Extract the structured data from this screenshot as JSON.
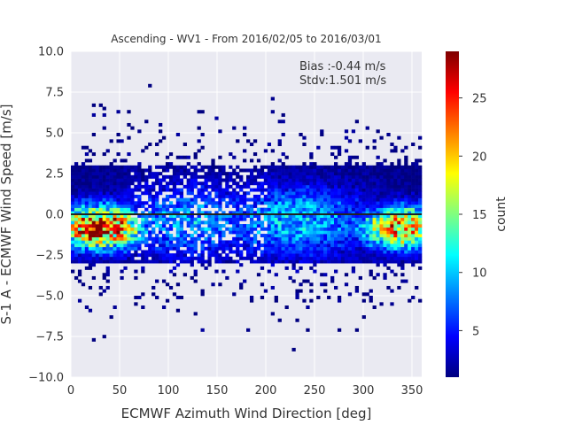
{
  "chart_data": {
    "type": "heatmap",
    "title": "Ascending - WV1 - From 2016/02/05 to 2016/03/01",
    "xlabel": "ECMWF Azimuth Wind Direction [deg]",
    "ylabel": "S-1 A - ECMWF Wind Speed [m/s]",
    "xlim": [
      0,
      360
    ],
    "ylim": [
      -10,
      10
    ],
    "x_ticks": [
      "0",
      "50",
      "100",
      "150",
      "200",
      "250",
      "300",
      "350"
    ],
    "y_ticks": [
      "10.0",
      "7.5",
      "5.0",
      "2.5",
      "0.0",
      "−2.5",
      "−5.0",
      "−7.5",
      "−10.0"
    ],
    "x_bin_width_deg": 3.6,
    "y_bin_height_ms": 0.2,
    "grid": true,
    "colormap": "jet",
    "colorbar": {
      "label": "count",
      "range": [
        1,
        29
      ],
      "ticks": [
        "5",
        "10",
        "15",
        "20",
        "25"
      ]
    },
    "annotations": [
      "Bias :-0.44 m/s",
      "Stdv:1.501 m/s"
    ],
    "reference_line_y": 0,
    "density_peaks": [
      {
        "x": 30,
        "y": -0.8,
        "count": 26
      },
      {
        "x": 340,
        "y": -0.8,
        "count": 21
      },
      {
        "x": 230,
        "y": -0.4,
        "count": 9
      },
      {
        "x": 120,
        "y": -0.4,
        "count": 8
      }
    ]
  },
  "colors": {
    "plot_background": "#eaeaf2",
    "grid": "#ffffff",
    "text": "#333333",
    "reference_line": "#222222"
  }
}
